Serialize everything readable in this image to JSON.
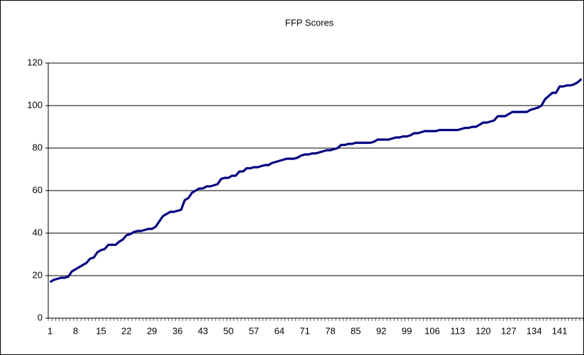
{
  "chart_data": {
    "type": "line",
    "title": "FFP Scores",
    "categories": [
      1,
      null,
      null,
      null,
      null,
      null,
      null,
      8,
      null,
      null,
      null,
      null,
      null,
      null,
      15,
      null,
      null,
      null,
      null,
      null,
      null,
      22,
      null,
      null,
      null,
      null,
      null,
      null,
      29,
      null,
      null,
      null,
      null,
      null,
      null,
      36,
      null,
      null,
      null,
      null,
      null,
      null,
      43,
      null,
      null,
      null,
      null,
      null,
      null,
      50,
      null,
      null,
      null,
      null,
      null,
      null,
      57,
      null,
      null,
      null,
      null,
      null,
      null,
      64,
      null,
      null,
      null,
      null,
      null,
      null,
      71,
      null,
      null,
      null,
      null,
      null,
      null,
      78,
      null,
      null,
      null,
      null,
      null,
      null,
      85,
      null,
      null,
      null,
      null,
      null,
      null,
      92,
      null,
      null,
      null,
      null,
      null,
      null,
      99,
      null,
      null,
      null,
      null,
      null,
      null,
      106,
      null,
      null,
      null,
      null,
      null,
      null,
      113,
      null,
      null,
      null,
      null,
      null,
      null,
      120,
      null,
      null,
      null,
      null,
      null,
      null,
      127,
      null,
      null,
      null,
      null,
      null,
      null,
      134,
      null,
      null,
      null,
      null,
      null,
      null,
      141,
      null,
      null,
      null,
      null,
      null,
      null
    ],
    "series": [
      {
        "color": "#000080",
        "values": [
          17,
          18,
          18.5,
          19,
          19,
          19.5,
          22,
          23,
          24,
          25,
          26,
          28,
          28.5,
          31,
          32,
          32.5,
          34.5,
          34.5,
          34.5,
          36,
          37,
          39,
          39.5,
          40.5,
          41,
          41,
          41.5,
          42,
          42,
          43,
          45.5,
          48,
          49,
          50,
          50,
          50.5,
          51,
          55.5,
          56.5,
          59,
          60,
          61,
          61,
          62,
          62,
          62.5,
          63,
          65.5,
          66,
          66,
          67,
          67,
          69,
          69,
          70.5,
          70.5,
          71,
          71,
          71.5,
          72,
          72,
          73,
          73.5,
          74,
          74.5,
          75,
          75,
          75,
          75.5,
          76.5,
          77,
          77,
          77.5,
          77.5,
          78,
          78.5,
          79,
          79,
          79.5,
          80,
          81.5,
          81.5,
          82,
          82,
          82.5,
          82.5,
          82.5,
          82.5,
          82.5,
          83,
          84,
          84,
          84,
          84,
          84.5,
          85,
          85,
          85.5,
          85.5,
          86,
          87,
          87,
          87.5,
          88,
          88,
          88,
          88,
          88.5,
          88.5,
          88.5,
          88.5,
          88.5,
          88.5,
          89,
          89.5,
          89.5,
          90,
          90,
          91,
          92,
          92,
          92.5,
          93,
          95,
          95,
          95,
          96,
          97,
          97,
          97,
          97,
          97,
          98,
          98.5,
          99,
          100,
          103,
          104.5,
          106,
          106,
          109,
          109,
          109.5,
          109.5,
          110,
          111,
          112.5
        ]
      }
    ],
    "ylim": [
      0,
      120
    ],
    "yticks": [
      0,
      20,
      40,
      60,
      80,
      100,
      120
    ],
    "grid": true
  }
}
